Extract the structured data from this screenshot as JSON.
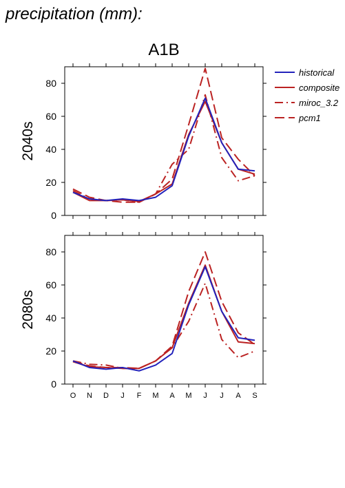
{
  "page_title": "precipitation (mm):",
  "scenario_title": "A1B",
  "legend": [
    {
      "label": "historical",
      "color": "#2222bb",
      "dash": "solid"
    },
    {
      "label": "composite",
      "color": "#bb2222",
      "dash": "solid"
    },
    {
      "label": "miroc_3.2",
      "color": "#bb2222",
      "dash": "dashdot"
    },
    {
      "label": "pcm1",
      "color": "#bb2222",
      "dash": "dashed"
    }
  ],
  "chart_data": [
    {
      "type": "line",
      "row_label": "2040s",
      "categories": [
        "O",
        "N",
        "D",
        "J",
        "F",
        "M",
        "A",
        "M",
        "J",
        "J",
        "A",
        "S"
      ],
      "ylim": [
        0,
        90
      ],
      "yticks": [
        0,
        20,
        40,
        60,
        80
      ],
      "series": [
        {
          "name": "historical",
          "values": [
            14,
            10,
            9,
            10,
            9,
            11,
            18,
            48,
            71,
            44,
            28,
            27
          ]
        },
        {
          "name": "composite",
          "values": [
            14,
            9,
            9,
            9.5,
            8.5,
            13,
            19,
            49,
            69,
            44,
            28,
            25
          ]
        },
        {
          "name": "miroc_3.2",
          "values": [
            15,
            10,
            9,
            9.5,
            8,
            13,
            31,
            40,
            73,
            35,
            21,
            24
          ]
        },
        {
          "name": "pcm1",
          "values": [
            16,
            11,
            9,
            8,
            8,
            13,
            22,
            55,
            89,
            47,
            34,
            24
          ]
        }
      ]
    },
    {
      "type": "line",
      "row_label": "2080s",
      "categories": [
        "O",
        "N",
        "D",
        "J",
        "F",
        "M",
        "A",
        "M",
        "J",
        "J",
        "A",
        "S"
      ],
      "ylim": [
        0,
        90
      ],
      "yticks": [
        0,
        20,
        40,
        60,
        80
      ],
      "series": [
        {
          "name": "historical",
          "values": [
            14,
            10,
            9,
            10,
            8,
            11.5,
            18.5,
            48,
            71,
            44,
            28,
            26.5
          ]
        },
        {
          "name": "composite",
          "values": [
            13.5,
            10.5,
            10,
            9.5,
            9.5,
            14,
            22,
            49,
            72,
            44,
            25.5,
            24.5
          ]
        },
        {
          "name": "miroc_3.2",
          "values": [
            14,
            12,
            11.5,
            9.5,
            9.5,
            14,
            22,
            38,
            61,
            27,
            16,
            20
          ]
        },
        {
          "name": "pcm1",
          "values": [
            14,
            11,
            10,
            10,
            9.5,
            14,
            23,
            56,
            80,
            50,
            31,
            24
          ]
        }
      ]
    }
  ]
}
